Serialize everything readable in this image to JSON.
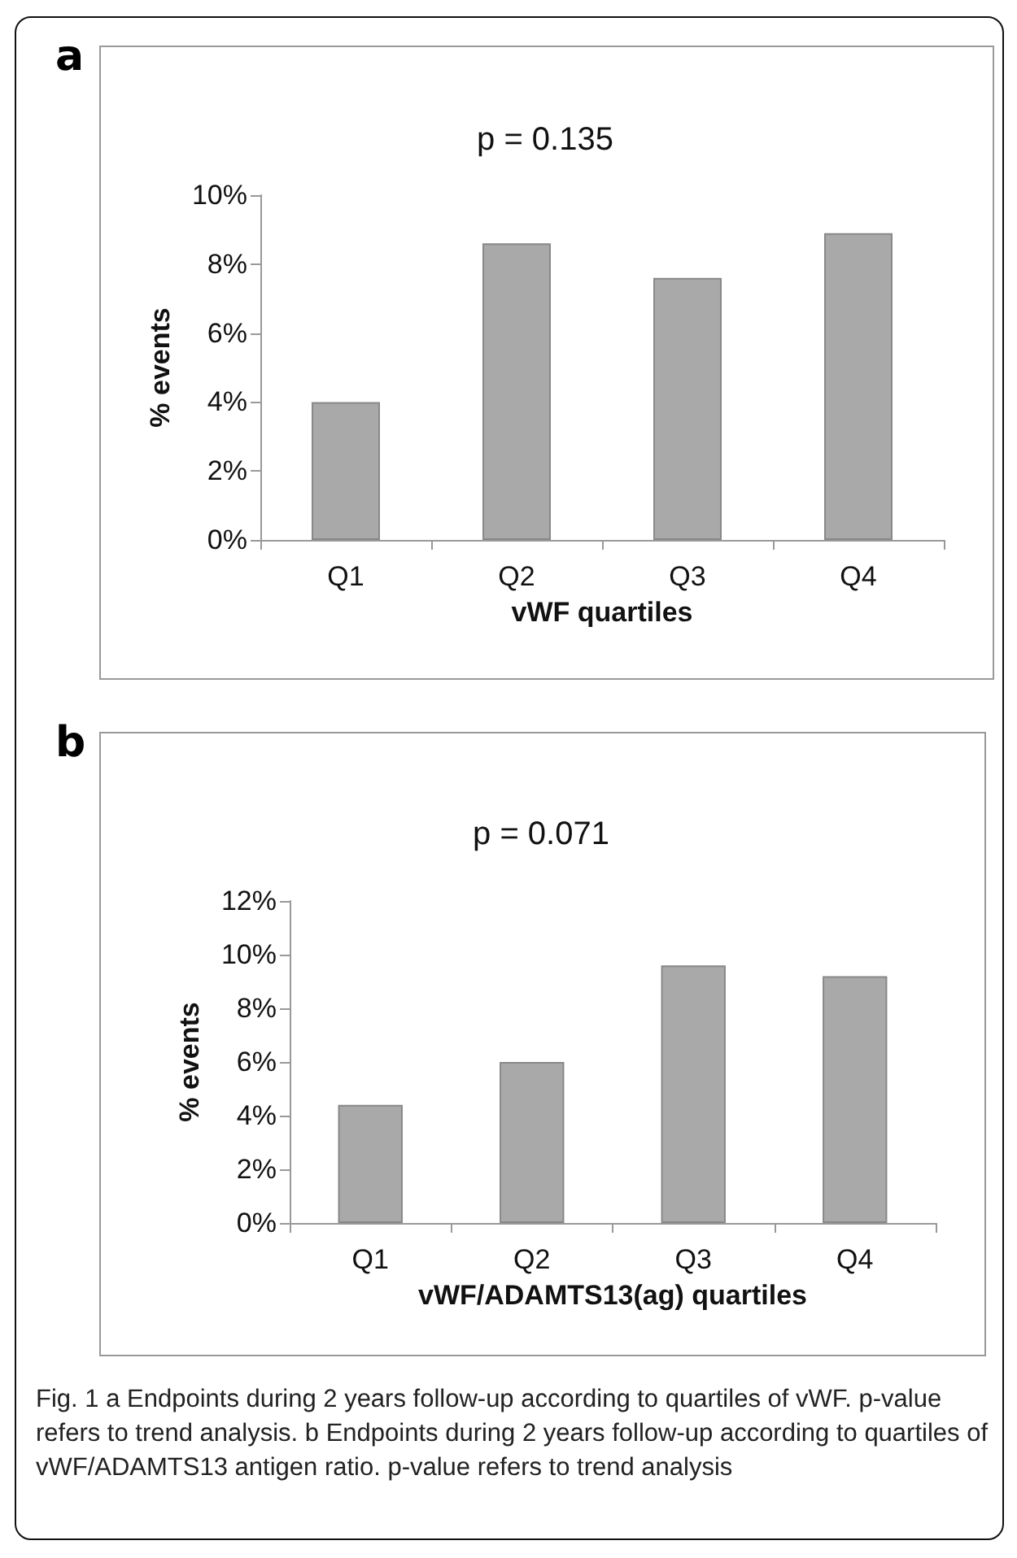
{
  "chart_data": [
    {
      "type": "bar",
      "title": "p = 0.135",
      "xlabel": "vWF quartiles",
      "ylabel": "% events",
      "annotations": [
        "a"
      ],
      "categories": [
        "Q1",
        "Q2",
        "Q3",
        "Q4"
      ],
      "values": [
        4.0,
        8.6,
        7.6,
        8.9
      ],
      "color": "#a9a9a9",
      "ylim": [
        0,
        10
      ],
      "yticks": [
        {
          "value": 0,
          "label": "0%"
        },
        {
          "value": 2,
          "label": "2%"
        },
        {
          "value": 4,
          "label": "4%"
        },
        {
          "value": 6,
          "label": "6%"
        },
        {
          "value": 8,
          "label": "8%"
        },
        {
          "value": 10,
          "label": "10%"
        }
      ],
      "grid": false
    },
    {
      "type": "bar",
      "title": "p = 0.071",
      "xlabel": "vWF/ADAMTS13(ag) quartiles",
      "ylabel": "% events",
      "annotations": [
        "b",
        "Fig. 1 a Endpoints during 2 years follow-up according to quartiles of vWF. p-value refers to trend analysis. b Endpoints during 2 years follow-up according to quartiles of vWF/ADAMTS13 antigen ratio. p-value refers to trend analysis"
      ],
      "categories": [
        "Q1",
        "Q2",
        "Q3",
        "Q4"
      ],
      "values": [
        4.4,
        6.0,
        9.6,
        9.2
      ],
      "color": "#a9a9a9",
      "ylim": [
        0,
        12
      ],
      "yticks": [
        {
          "value": 0,
          "label": "0%"
        },
        {
          "value": 2,
          "label": "2%"
        },
        {
          "value": 4,
          "label": "4%"
        },
        {
          "value": 6,
          "label": "6%"
        },
        {
          "value": 8,
          "label": "8%"
        },
        {
          "value": 10,
          "label": "10%"
        },
        {
          "value": 12,
          "label": "12%"
        }
      ],
      "grid": false
    }
  ]
}
